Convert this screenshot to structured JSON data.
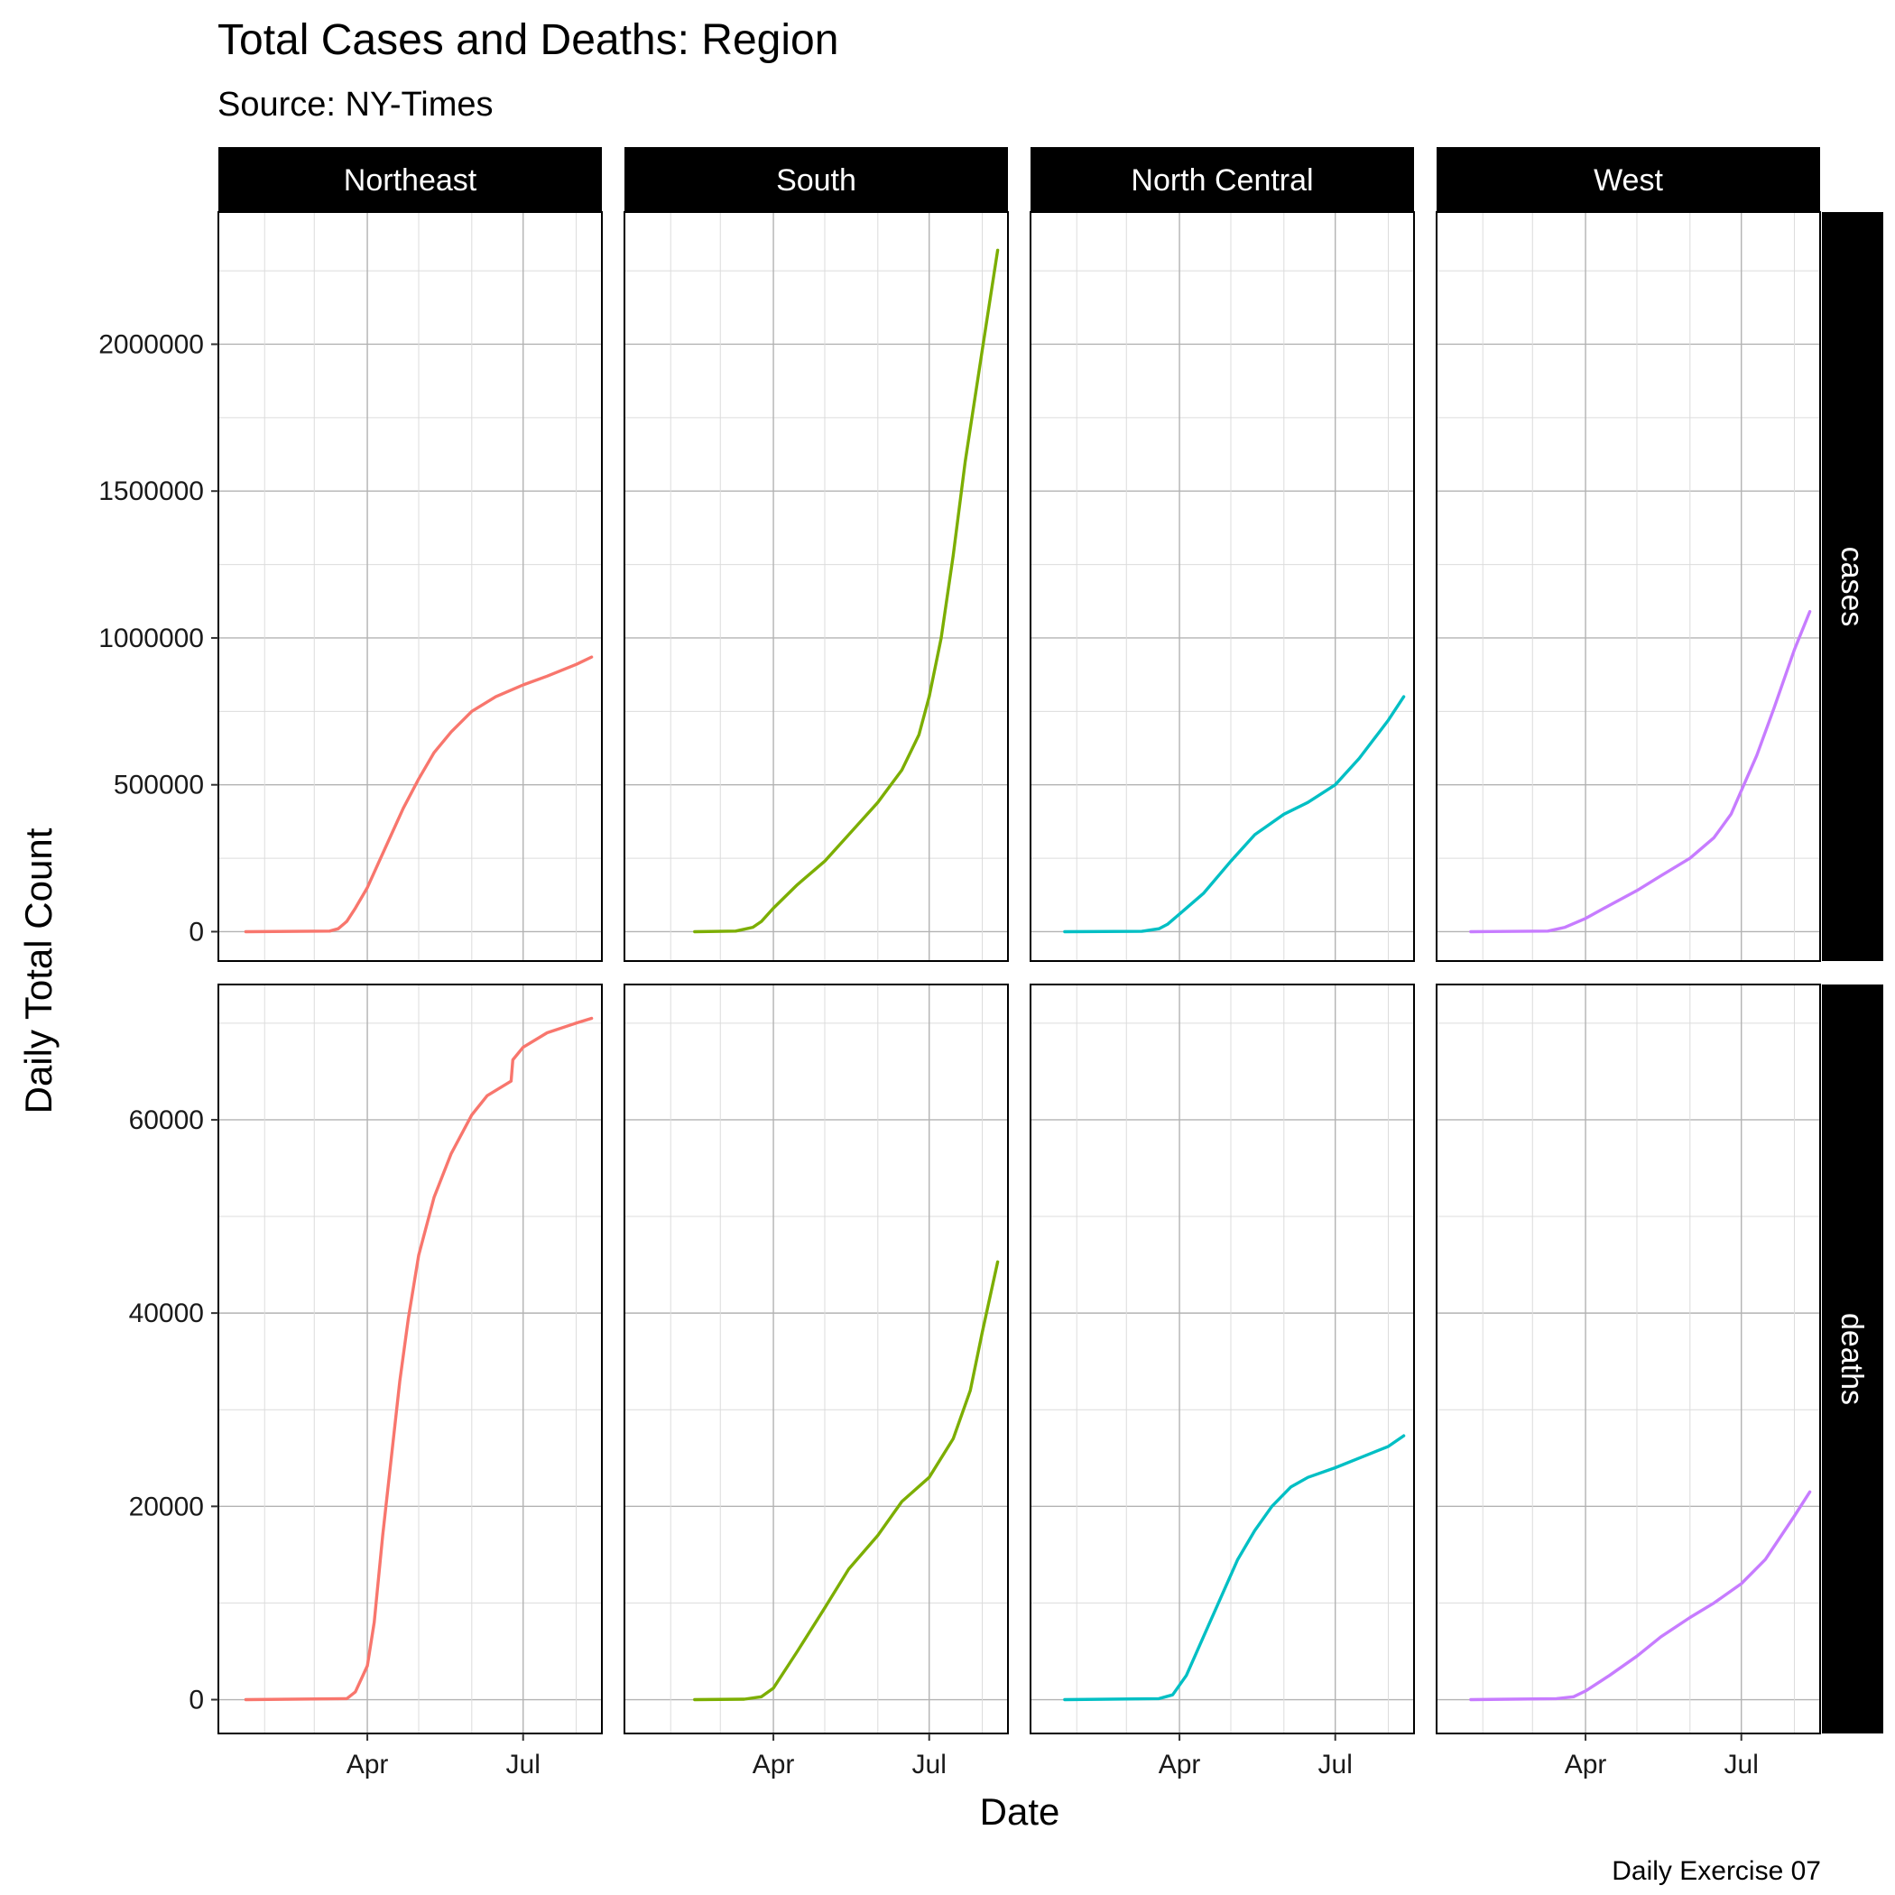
{
  "title": "Total Cases and Deaths: Region",
  "subtitle": "Source: NY-Times",
  "caption": "Daily Exercise 07",
  "chart_data": {
    "type": "line",
    "title": "Total Cases and Deaths: Region",
    "subtitle": "Source: NY-Times",
    "xlabel": "Date",
    "ylabel": "Daily Total Count",
    "x_ticks": [
      "Apr",
      "Jul"
    ],
    "x_tick_dates": [
      "2020-04-01",
      "2020-07-01"
    ],
    "xlim": [
      "2020-01-05",
      "2020-08-16"
    ],
    "grid": true,
    "legend": "none",
    "columns": [
      {
        "name": "Northeast",
        "color": "#F8766D"
      },
      {
        "name": "South",
        "color": "#7CAE00"
      },
      {
        "name": "North Central",
        "color": "#00BFC4"
      },
      {
        "name": "West",
        "color": "#C77CFF"
      }
    ],
    "rows": [
      {
        "name": "cases",
        "ylim": [
          -100000,
          2450000
        ],
        "y_ticks": [
          0,
          500000,
          1000000,
          1500000,
          2000000
        ],
        "y_tick_labels": [
          "0",
          "500000",
          "1000000",
          "1500000",
          "2000000"
        ],
        "series": [
          {
            "name": "Northeast",
            "x": [
              "2020-01-21",
              "2020-03-10",
              "2020-03-15",
              "2020-03-20",
              "2020-03-25",
              "2020-04-01",
              "2020-04-08",
              "2020-04-15",
              "2020-04-22",
              "2020-05-01",
              "2020-05-10",
              "2020-05-20",
              "2020-06-01",
              "2020-06-15",
              "2020-07-01",
              "2020-07-15",
              "2020-08-01",
              "2020-08-10"
            ],
            "values": [
              0,
              2000,
              10000,
              35000,
              80000,
              150000,
              240000,
              330000,
              420000,
              520000,
              610000,
              680000,
              750000,
              800000,
              840000,
              870000,
              910000,
              935000
            ]
          },
          {
            "name": "South",
            "x": [
              "2020-02-15",
              "2020-03-10",
              "2020-03-20",
              "2020-03-25",
              "2020-04-01",
              "2020-04-15",
              "2020-05-01",
              "2020-05-15",
              "2020-06-01",
              "2020-06-15",
              "2020-06-25",
              "2020-07-01",
              "2020-07-08",
              "2020-07-15",
              "2020-07-22",
              "2020-08-01",
              "2020-08-10"
            ],
            "values": [
              0,
              2000,
              15000,
              35000,
              80000,
              160000,
              240000,
              330000,
              440000,
              550000,
              670000,
              800000,
              1000000,
              1280000,
              1600000,
              1980000,
              2320000
            ]
          },
          {
            "name": "North Central",
            "x": [
              "2020-01-25",
              "2020-03-10",
              "2020-03-20",
              "2020-03-25",
              "2020-04-01",
              "2020-04-15",
              "2020-05-01",
              "2020-05-15",
              "2020-06-01",
              "2020-06-15",
              "2020-07-01",
              "2020-07-15",
              "2020-08-01",
              "2020-08-10"
            ],
            "values": [
              0,
              1000,
              10000,
              25000,
              60000,
              130000,
              240000,
              330000,
              400000,
              440000,
              500000,
              590000,
              720000,
              800000
            ]
          },
          {
            "name": "West",
            "x": [
              "2020-01-25",
              "2020-03-10",
              "2020-03-20",
              "2020-04-01",
              "2020-04-15",
              "2020-05-01",
              "2020-05-15",
              "2020-06-01",
              "2020-06-15",
              "2020-06-25",
              "2020-07-01",
              "2020-07-10",
              "2020-07-20",
              "2020-08-01",
              "2020-08-10"
            ],
            "values": [
              0,
              2000,
              15000,
              45000,
              90000,
              140000,
              190000,
              250000,
              320000,
              400000,
              480000,
              600000,
              760000,
              960000,
              1090000
            ]
          }
        ]
      },
      {
        "name": "deaths",
        "ylim": [
          -3500,
          74000
        ],
        "y_ticks": [
          0,
          20000,
          40000,
          60000
        ],
        "y_tick_labels": [
          "0",
          "20000",
          "40000",
          "60000"
        ],
        "series": [
          {
            "name": "Northeast",
            "x": [
              "2020-01-21",
              "2020-03-20",
              "2020-03-25",
              "2020-04-01",
              "2020-04-05",
              "2020-04-10",
              "2020-04-15",
              "2020-04-20",
              "2020-04-25",
              "2020-05-01",
              "2020-05-10",
              "2020-05-20",
              "2020-06-01",
              "2020-06-10",
              "2020-06-24",
              "2020-06-25",
              "2020-07-01",
              "2020-07-15",
              "2020-08-01",
              "2020-08-10"
            ],
            "values": [
              0,
              100,
              800,
              3500,
              8000,
              17000,
              25000,
              33000,
              39500,
              46000,
              52000,
              56500,
              60500,
              62500,
              64000,
              66200,
              67500,
              69000,
              70000,
              70500
            ]
          },
          {
            "name": "South",
            "x": [
              "2020-02-15",
              "2020-03-15",
              "2020-03-25",
              "2020-04-01",
              "2020-04-15",
              "2020-05-01",
              "2020-05-15",
              "2020-06-01",
              "2020-06-15",
              "2020-07-01",
              "2020-07-15",
              "2020-07-25",
              "2020-08-01",
              "2020-08-10"
            ],
            "values": [
              0,
              50,
              300,
              1200,
              5000,
              9500,
              13500,
              17000,
              20500,
              23000,
              27000,
              32000,
              38000,
              45300
            ]
          },
          {
            "name": "North Central",
            "x": [
              "2020-01-25",
              "2020-03-20",
              "2020-03-28",
              "2020-04-05",
              "2020-04-15",
              "2020-04-25",
              "2020-05-05",
              "2020-05-15",
              "2020-05-25",
              "2020-06-05",
              "2020-06-15",
              "2020-07-01",
              "2020-07-15",
              "2020-08-01",
              "2020-08-10"
            ],
            "values": [
              0,
              100,
              500,
              2500,
              6500,
              10500,
              14500,
              17500,
              20000,
              22000,
              23000,
              24000,
              25000,
              26200,
              27300
            ]
          },
          {
            "name": "West",
            "x": [
              "2020-01-25",
              "2020-03-15",
              "2020-03-25",
              "2020-04-01",
              "2020-04-15",
              "2020-05-01",
              "2020-05-15",
              "2020-06-01",
              "2020-06-15",
              "2020-07-01",
              "2020-07-15",
              "2020-08-01",
              "2020-08-10"
            ],
            "values": [
              0,
              100,
              300,
              900,
              2500,
              4500,
              6500,
              8500,
              10000,
              12000,
              14500,
              19000,
              21500
            ]
          }
        ]
      }
    ]
  }
}
